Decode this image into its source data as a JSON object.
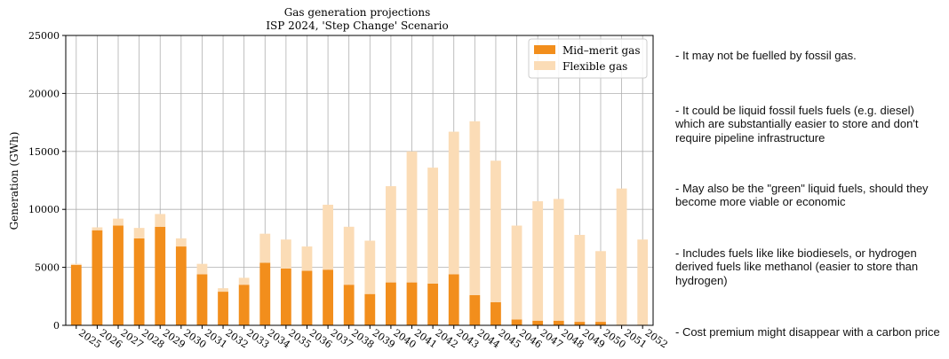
{
  "chart_data": {
    "type": "bar",
    "stacked": true,
    "title": "Gas generation projections",
    "subtitle": "ISP 2024, 'Step Change' Scenario",
    "xlabel": "",
    "ylabel": "Generation (GWh)",
    "ylim": [
      0,
      25000
    ],
    "yticks": [
      0,
      5000,
      10000,
      15000,
      20000,
      25000
    ],
    "grid": true,
    "legend": "top-right",
    "categories": [
      "2025",
      "2026",
      "2027",
      "2028",
      "2029",
      "2030",
      "2031",
      "2032",
      "2033",
      "2034",
      "2035",
      "2036",
      "2037",
      "2038",
      "2039",
      "2040",
      "2041",
      "2042",
      "2043",
      "2044",
      "2045",
      "2046",
      "2047",
      "2048",
      "2049",
      "2050",
      "2051",
      "2052"
    ],
    "series": [
      {
        "name": "Mid–merit gas",
        "color": "#f28e1c",
        "values": [
          5200,
          8200,
          8600,
          7500,
          8500,
          6800,
          4400,
          2900,
          3500,
          5400,
          4900,
          4700,
          4800,
          3500,
          2700,
          3700,
          3700,
          3600,
          4400,
          2600,
          2000,
          500,
          400,
          400,
          300,
          300,
          0,
          0
        ]
      },
      {
        "name": "Flexible gas",
        "color": "#fbdcb6",
        "values": [
          100,
          250,
          600,
          900,
          1100,
          700,
          900,
          300,
          600,
          2500,
          2500,
          2100,
          5600,
          5000,
          4600,
          8300,
          11300,
          10000,
          12300,
          15000,
          12200,
          8100,
          10300,
          10500,
          7500,
          6100,
          11800,
          7400
        ]
      }
    ]
  },
  "notes": [
    "-  It  may not be fuelled by fossil gas.",
    "- It could be liquid fossil fuels fuels (e.g. diesel) which are substantially easier to store and don't require pipeline infrastructure",
    "-  May also be the \"green\" liquid fuels, should they become more viable or economic",
    "- Includes fuels like like biodiesels, or hydrogen derived fuels like methanol (easier to store than  hydrogen)",
    "- Cost premium might disappear with a carbon price"
  ]
}
